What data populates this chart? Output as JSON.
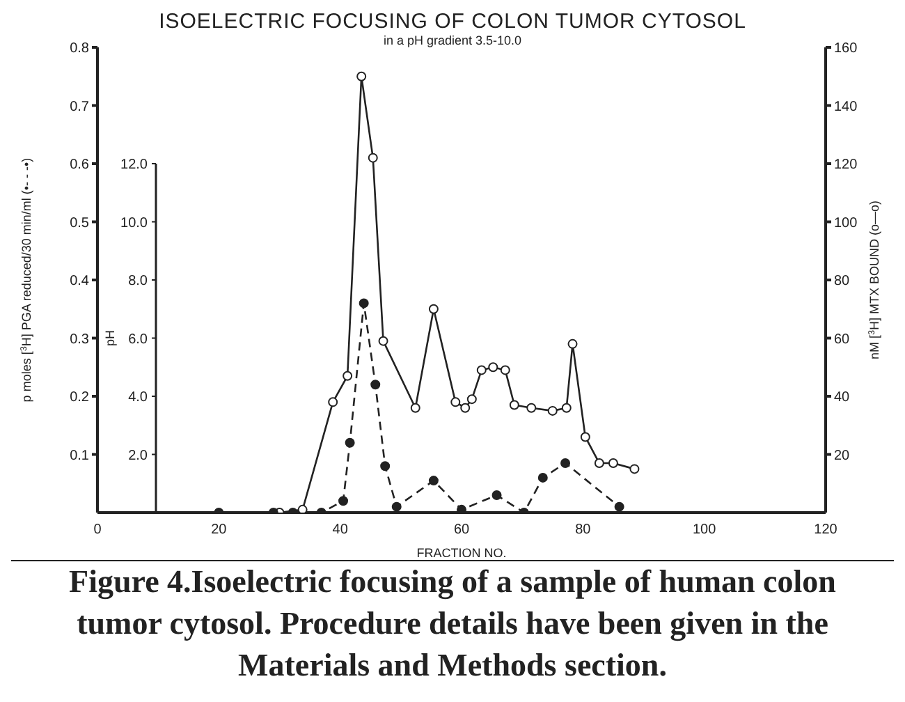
{
  "chart_data": {
    "type": "line",
    "title": "ISOELECTRIC FOCUSING OF COLON TUMOR CYTOSOL",
    "subtitle": "in a pH gradient 3.5-10.0",
    "xlabel": "FRACTION NO.",
    "ylabel": "p moles [$^{3}$H] PGA reduced/30 min/ml (•- - -•)",
    "y2label": "nM [$^{3}$H] MTX BOUND (o—o)",
    "y3label": "pH",
    "xlim": [
      0,
      120
    ],
    "xticks": [
      0,
      20,
      40,
      60,
      80,
      100,
      120
    ],
    "ylim": [
      0,
      0.8
    ],
    "yticks": [
      0.1,
      0.2,
      0.3,
      0.4,
      0.5,
      0.6,
      0.7,
      0.8
    ],
    "y2lim": [
      0,
      160
    ],
    "y2ticks": [
      20,
      40,
      60,
      80,
      100,
      120,
      140,
      160
    ],
    "y3lim": [
      0,
      16
    ],
    "y3ticks": [
      {
        "value": 2,
        "label": "2.0"
      },
      {
        "value": 4,
        "label": "4.0"
      },
      {
        "value": 6,
        "label": "6.0"
      },
      {
        "value": 8,
        "label": "8.0"
      },
      {
        "value": 10,
        "label": "10.0"
      },
      {
        "value": 12,
        "label": "12.0"
      }
    ],
    "marker": "circle",
    "series": [
      {
        "color": "#222222",
        "axis": "y2",
        "line_style": "solid",
        "x": [
          30,
          33.8,
          38.8,
          41.2,
          43.5,
          45.4,
          47.1,
          52.4,
          55.4,
          59,
          60.6,
          61.7,
          63.3,
          65.2,
          67.2,
          68.7,
          71.5,
          75,
          77.3,
          78.3,
          80.4,
          82.7,
          85,
          88.5
        ],
        "values": [
          0,
          1,
          38,
          47,
          150,
          122,
          59,
          36,
          70,
          38,
          36,
          39,
          49,
          50,
          49,
          37,
          36,
          35,
          36,
          58,
          26,
          17,
          17,
          15
        ]
      },
      {
        "color": "#222222",
        "axis": "y",
        "line_style": "dashed",
        "x": [
          20,
          29,
          32.2,
          36.9,
          40.5,
          41.6,
          43.9,
          45.8,
          47.4,
          49.3,
          55.4,
          60,
          65.8,
          70.3,
          73.4,
          77.1,
          86
        ],
        "values": [
          0,
          0,
          0,
          0,
          0.02,
          0.12,
          0.36,
          0.22,
          0.08,
          0.01,
          0.055,
          0.005,
          0.03,
          0,
          0.06,
          0.085,
          0.01
        ]
      }
    ],
    "annotations": [
      "Figure 4.Isoelectric focusing of a sample of human colon tumor cytosol. Procedure details have been given in the Materials and Methods section."
    ]
  }
}
